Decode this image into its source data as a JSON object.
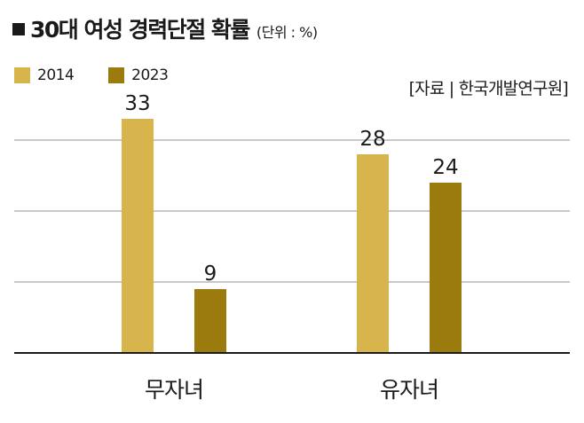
{
  "title": "30대 여성 경력단절 확률",
  "unit": "(단위 : %)",
  "source": "[자료 | 한국개발연구원]",
  "colors": {
    "2014": "#d8b54c",
    "2023": "#9c7b0e",
    "axis": "#1a1a1a",
    "grid": "#a7a7a7"
  },
  "chart_data": {
    "type": "bar",
    "categories": [
      "무자녀",
      "유자녀"
    ],
    "series": [
      {
        "name": "2014",
        "values": [
          33,
          28
        ]
      },
      {
        "name": "2023",
        "values": [
          9,
          24
        ]
      }
    ],
    "ylim": [
      0,
      40
    ],
    "grid": true,
    "legend": "top-left"
  }
}
